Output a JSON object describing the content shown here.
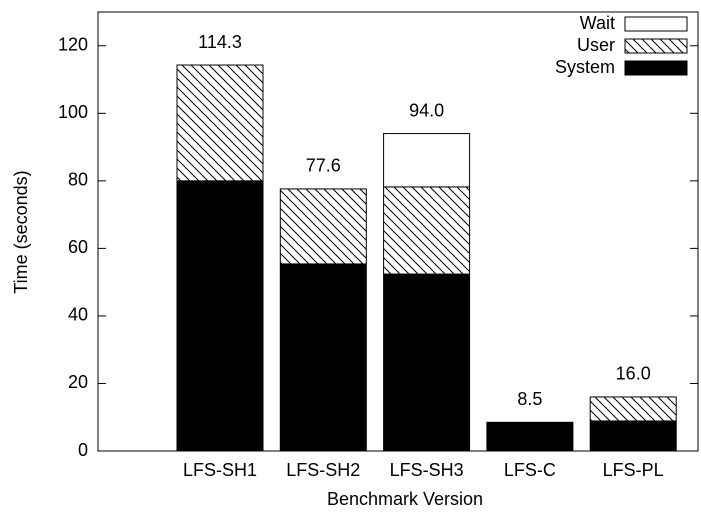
{
  "chart_data": {
    "type": "stacked-bar",
    "x_label": "Benchmark Version",
    "y_label": "Time (seconds)",
    "categories": [
      "LFS-SH1",
      "LFS-SH2",
      "LFS-SH3",
      "LFS-C",
      "LFS-PL"
    ],
    "series": [
      {
        "name": "System",
        "color": "#000000",
        "pattern": "solid",
        "values": [
          80.0,
          55.4,
          52.4,
          8.5,
          8.9
        ]
      },
      {
        "name": "User",
        "color": "#000000",
        "pattern": "hatch",
        "values": [
          34.3,
          22.2,
          25.8,
          0,
          7.1
        ]
      },
      {
        "name": "Wait",
        "color": "#ffffff",
        "pattern": "solid",
        "values": [
          0,
          0,
          15.8,
          0,
          0
        ]
      }
    ],
    "totals": [
      114.3,
      77.6,
      94.0,
      8.5,
      16.0
    ],
    "total_labels": [
      "114.3",
      "77.6",
      "94.0",
      "8.5",
      "16.0"
    ],
    "ylim": [
      0,
      130
    ],
    "yticks": [
      0,
      20,
      40,
      60,
      80,
      100,
      120
    ],
    "legend": "top-right"
  }
}
